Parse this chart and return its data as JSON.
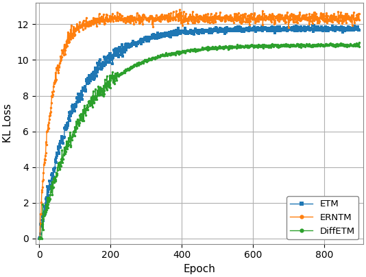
{
  "title": "",
  "xlabel": "Epoch",
  "ylabel": "KL Loss",
  "xlim": [
    -10,
    910
  ],
  "ylim": [
    -0.3,
    13.2
  ],
  "yticks": [
    0,
    2,
    4,
    6,
    8,
    10,
    12
  ],
  "xticks": [
    0,
    200,
    400,
    600,
    800
  ],
  "background_color": "#ffffff",
  "grid_color": "#b0b0b0",
  "series": [
    {
      "label": "ETM",
      "color": "#1f77b4",
      "marker": "s",
      "markersize": 2.5,
      "linewidth": 1.0,
      "saturation_epoch": 250,
      "plateau_value": 11.75,
      "noise_scale_rise": 0.18,
      "noise_scale_plateau": 0.07,
      "time_const": 100,
      "n_epochs": 900,
      "spike": false
    },
    {
      "label": "ERNTM",
      "color": "#ff7f0e",
      "marker": "o",
      "markersize": 2.5,
      "linewidth": 1.0,
      "saturation_epoch": 100,
      "plateau_value": 12.35,
      "noise_scale_rise": 0.22,
      "noise_scale_plateau": 0.14,
      "time_const": 35,
      "n_epochs": 900,
      "spike": false
    },
    {
      "label": "DiffETM",
      "color": "#2ca02c",
      "marker": "o",
      "markersize": 2.5,
      "linewidth": 1.0,
      "saturation_epoch": 220,
      "plateau_value": 10.85,
      "noise_scale_rise": 0.2,
      "noise_scale_plateau": 0.04,
      "time_const": 120,
      "n_epochs": 900,
      "spike": true
    }
  ],
  "legend_loc": "lower right",
  "legend_fontsize": 9.5,
  "figsize": [
    5.34,
    4.04
  ],
  "dpi": 100
}
